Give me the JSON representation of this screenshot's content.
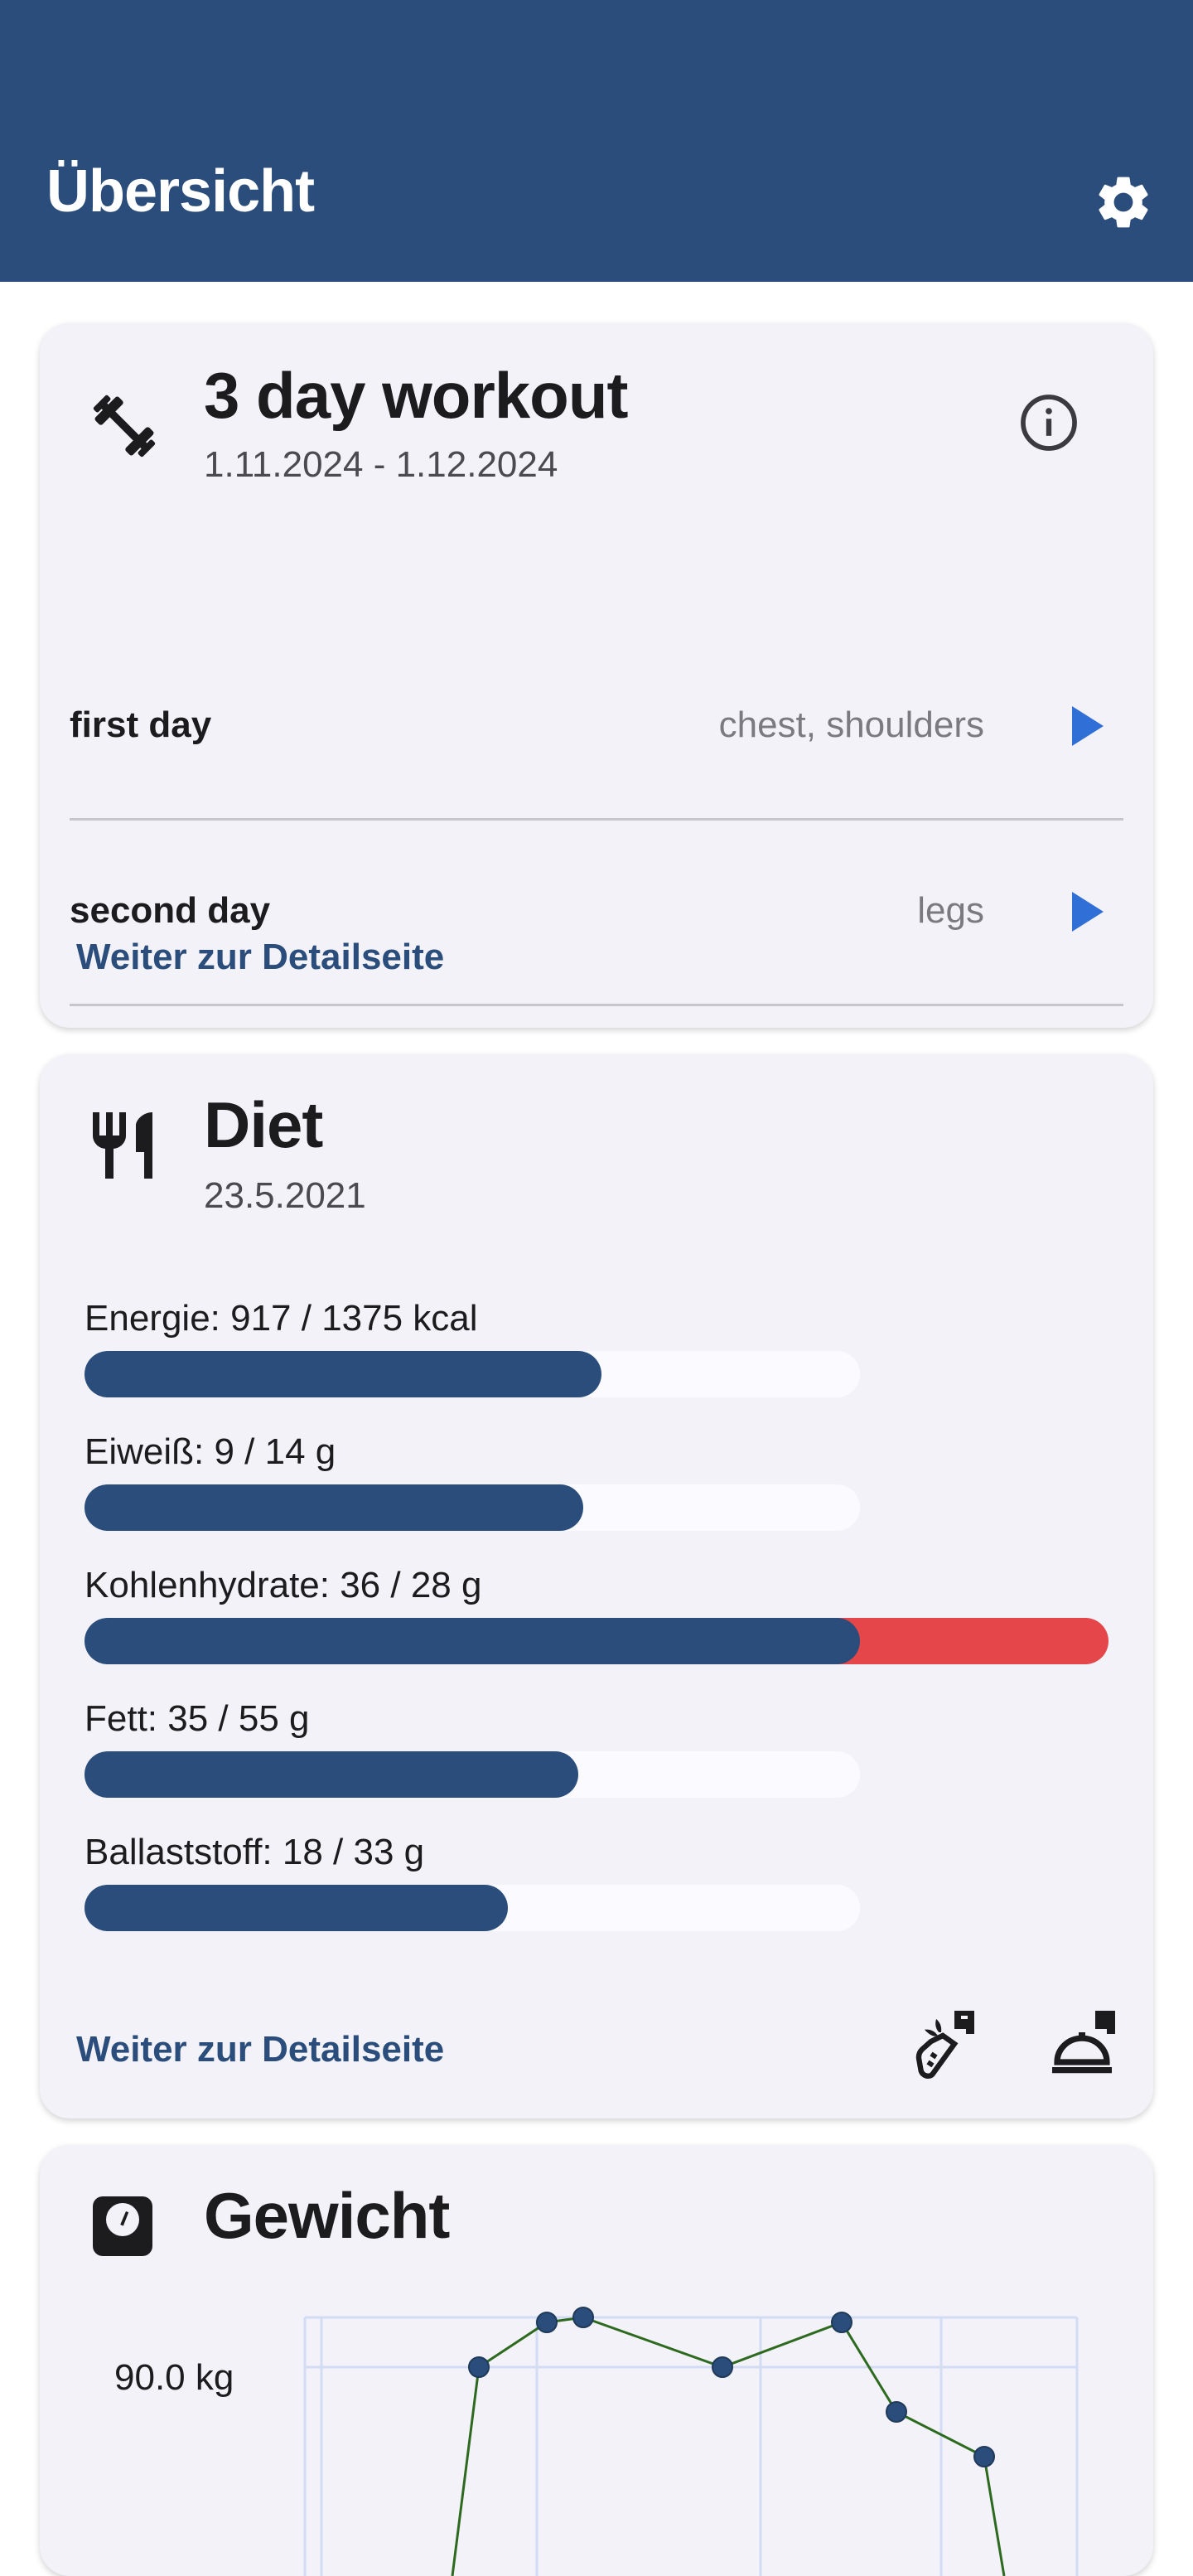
{
  "appbar": {
    "title": "Übersicht",
    "settings_icon": "gear-icon",
    "background": "#2b4d7b"
  },
  "workout": {
    "title": "3 day workout",
    "dates": "1.11.2024 - 1.12.2024",
    "icon": "dumbbell-icon",
    "days": [
      {
        "label": "first day",
        "muscles": "chest, shoulders"
      },
      {
        "label": "second day",
        "muscles": "legs"
      }
    ],
    "link": "Weiter zur Detailseite"
  },
  "diet": {
    "title": "Diet",
    "date": "23.5.2021",
    "icon": "cutlery-icon",
    "nutrients": [
      {
        "label": "Energie: 917 / 1375 kcal",
        "value": 917,
        "goal": 1375
      },
      {
        "label": "Eiweiß: 9 / 14 g",
        "value": 9,
        "goal": 14
      },
      {
        "label": "Kohlenhydrate: 36 / 28 g",
        "value": 36,
        "goal": 28
      },
      {
        "label": "Fett: 35 / 55 g",
        "value": 35,
        "goal": 55
      },
      {
        "label": "Ballaststoff: 18 / 33 g",
        "value": 18,
        "goal": 33
      }
    ],
    "link": "Weiter zur Detailseite",
    "actions": [
      "add-ingredient-icon",
      "add-meal-icon"
    ],
    "colors": {
      "fill": "#2b4d7b",
      "over": "#e44649",
      "track": "#fafaff"
    }
  },
  "weight": {
    "title": "Gewicht",
    "icon": "scale-icon",
    "y_tick_label": "90.0 kg"
  },
  "chart_data": {
    "type": "line",
    "title": "",
    "ylabel": "",
    "y_ticks": [
      "90.0 kg"
    ],
    "series": [
      {
        "values": [
          90.0,
          90.9,
          91.0,
          90.0,
          90.9,
          89.1,
          88.2
        ]
      }
    ],
    "line_color": "#2d6a1f",
    "point_color": "#2b4d7b",
    "grid": true
  }
}
